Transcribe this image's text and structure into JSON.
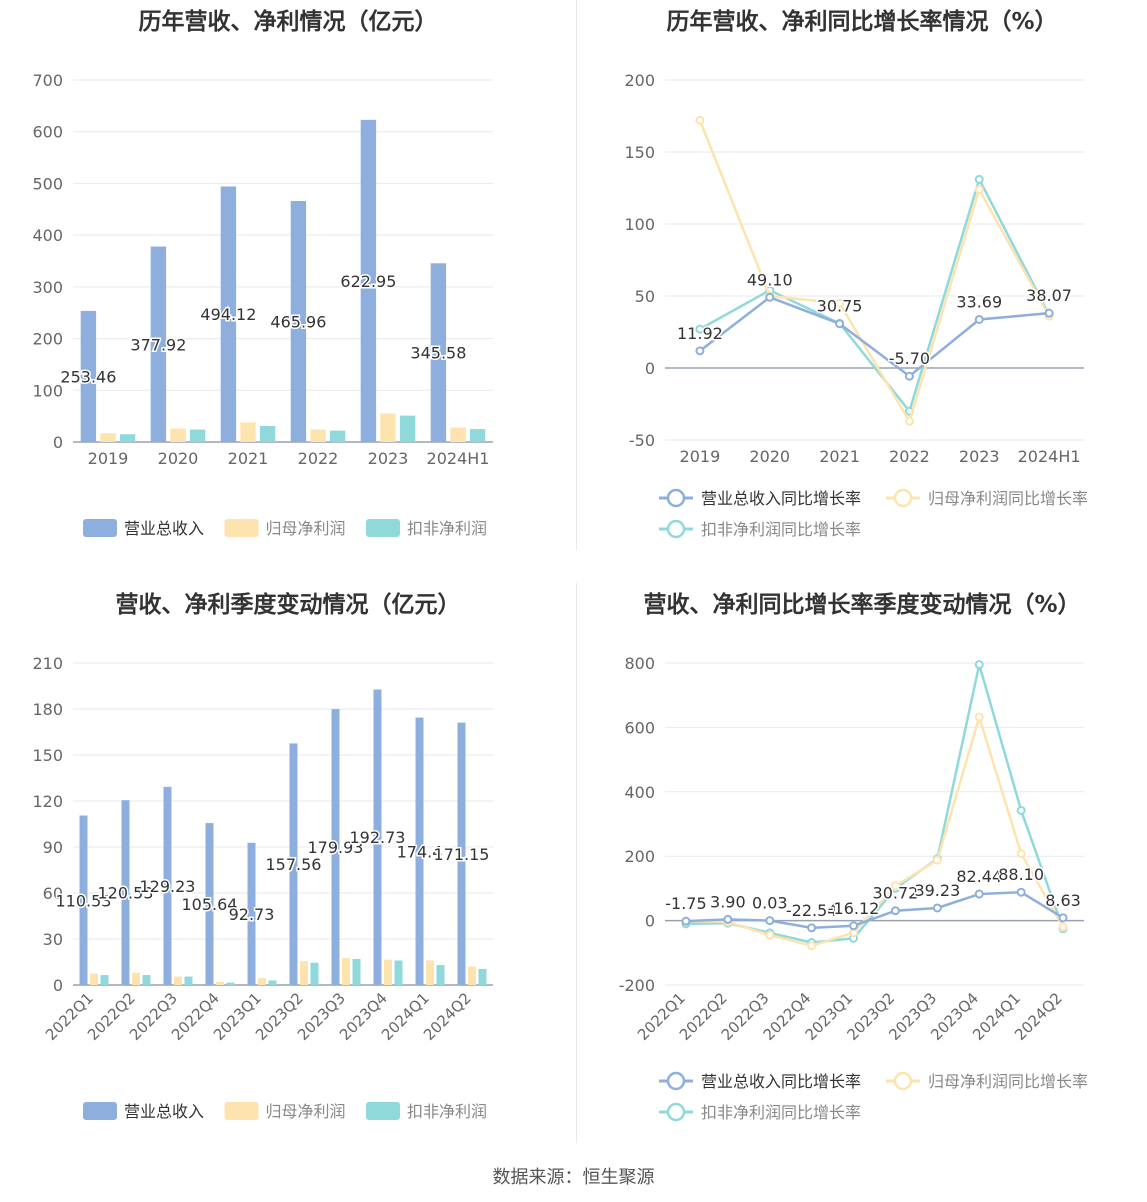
{
  "footer": "数据来源：恒生聚源",
  "colors": {
    "revenue": "#8eaedd",
    "net": "#fde3ad",
    "deducted": "#8fd9db",
    "axis": "#9aa2b1",
    "grid": "#e6e9f0"
  },
  "chart_data": [
    {
      "type": "bar",
      "title": "历年营收、净利情况（亿元）",
      "categories": [
        "2019",
        "2020",
        "2021",
        "2022",
        "2023",
        "2024H1"
      ],
      "ylim": [
        0,
        700
      ],
      "yticks": [
        0,
        100,
        200,
        300,
        400,
        500,
        600,
        700
      ],
      "series": [
        {
          "name": "营业总收入",
          "values": [
            253.46,
            377.92,
            494.12,
            465.96,
            622.95,
            345.58
          ],
          "labels": [
            "253.46",
            "377.92",
            "494.12",
            "465.96",
            "622.95",
            "345.58"
          ]
        },
        {
          "name": "归母净利润",
          "values": [
            17,
            26,
            38,
            24,
            55,
            28
          ]
        },
        {
          "name": "扣非净利润",
          "values": [
            15,
            24,
            31,
            22,
            51,
            25
          ]
        }
      ],
      "legend": "bottom"
    },
    {
      "type": "line",
      "title": "历年营收、净利同比增长率情况（%）",
      "categories": [
        "2019",
        "2020",
        "2021",
        "2022",
        "2023",
        "2024H1"
      ],
      "ylim": [
        -50,
        200
      ],
      "yticks": [
        -50,
        0,
        50,
        100,
        150,
        200
      ],
      "series": [
        {
          "name": "营业总收入同比增长率",
          "values": [
            11.92,
            49.1,
            30.75,
            -5.7,
            33.69,
            38.07
          ],
          "labels": [
            "11.92",
            "49.10",
            "30.75",
            "-5.70",
            "33.69",
            "38.07"
          ]
        },
        {
          "name": "归母净利润同比增长率",
          "values": [
            172,
            50,
            45,
            -37,
            124,
            36
          ]
        },
        {
          "name": "扣非净利润同比增长率",
          "values": [
            27,
            54,
            31,
            -30,
            131,
            37
          ]
        }
      ],
      "legend": "bottom"
    },
    {
      "type": "bar",
      "title": "营收、净利季度变动情况（亿元）",
      "categories": [
        "2022Q1",
        "2022Q2",
        "2022Q3",
        "2022Q4",
        "2023Q1",
        "2023Q2",
        "2023Q3",
        "2023Q4",
        "2024Q1",
        "2024Q2"
      ],
      "ylim": [
        0,
        210
      ],
      "yticks": [
        0,
        30,
        60,
        90,
        120,
        150,
        180,
        210
      ],
      "series": [
        {
          "name": "营业总收入",
          "values": [
            110.53,
            120.53,
            129.23,
            105.64,
            92.73,
            157.56,
            179.93,
            192.73,
            174.4,
            171.15
          ],
          "labels": [
            "110.53",
            "120.53",
            "129.23",
            "105.64",
            "92.73",
            "157.56",
            "179.93",
            "192.73",
            "174.4",
            "171.15"
          ]
        },
        {
          "name": "归母净利润",
          "values": [
            7.5,
            8,
            5.5,
            2,
            4.5,
            15.5,
            17.5,
            16.5,
            16,
            12
          ]
        },
        {
          "name": "扣非净利润",
          "values": [
            6.5,
            6.5,
            5.5,
            1.5,
            3,
            14.5,
            17,
            16,
            13,
            10.5
          ]
        }
      ],
      "legend": "bottom"
    },
    {
      "type": "line",
      "title": "营收、净利同比增长率季度变动情况（%）",
      "categories": [
        "2022Q1",
        "2022Q2",
        "2022Q3",
        "2022Q4",
        "2023Q1",
        "2023Q2",
        "2023Q3",
        "2023Q4",
        "2024Q1",
        "2024Q2"
      ],
      "ylim": [
        -200,
        800
      ],
      "yticks": [
        -200,
        0,
        200,
        400,
        600,
        800
      ],
      "series": [
        {
          "name": "营业总收入同比增长率",
          "values": [
            -1.75,
            3.9,
            0.03,
            -22.54,
            -16.12,
            30.72,
            39.23,
            82.44,
            88.1,
            8.63
          ],
          "labels": [
            "-1.75",
            "3.90",
            "0.03",
            "-22.54",
            "-16.12",
            "30.72",
            "39.23",
            "82.44",
            "88.10",
            "8.63"
          ]
        },
        {
          "name": "归母净利润同比增长率",
          "values": [
            -2,
            -4,
            -45,
            -78,
            -38,
            108,
            188,
            632,
            208,
            -20
          ]
        },
        {
          "name": "扣非净利润同比增长率",
          "values": [
            -10,
            -8,
            -38,
            -68,
            -55,
            100,
            192,
            795,
            342,
            -25
          ]
        }
      ],
      "legend": "bottom"
    }
  ]
}
